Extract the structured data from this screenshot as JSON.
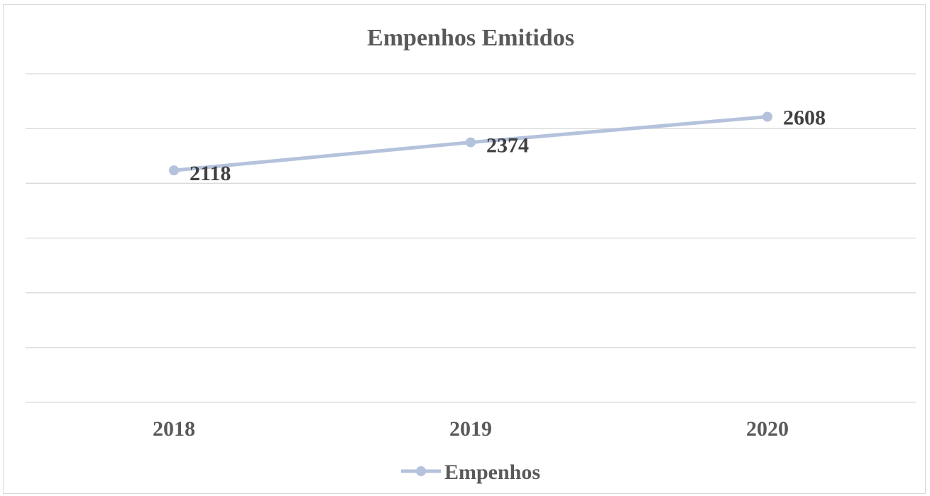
{
  "chart_data": {
    "type": "line",
    "title": "Empenhos Emitidos",
    "categories": [
      "2018",
      "2019",
      "2020"
    ],
    "series": [
      {
        "name": "Empenhos",
        "values": [
          2118,
          2374,
          2608
        ],
        "labels": [
          "2118",
          "2374",
          "2608"
        ],
        "color": "#b4c2dc"
      }
    ],
    "ylim": [
      0,
      3000
    ],
    "grid": true,
    "xlabel": "",
    "ylabel": "",
    "legend_position": "bottom"
  },
  "colors": {
    "gridline": "#d9d9d9",
    "text": "#595959",
    "label": "#404040"
  }
}
